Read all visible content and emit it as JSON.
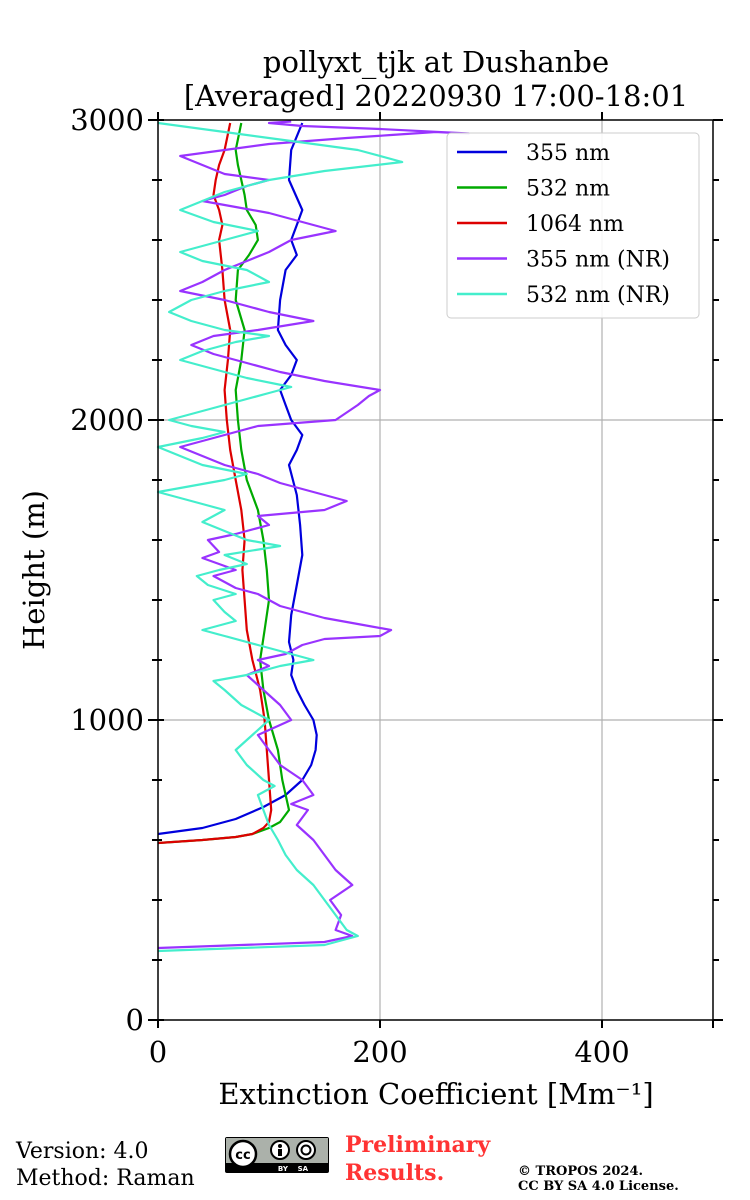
{
  "chart_data": {
    "type": "line",
    "title": [
      "pollyxt_tjk at Dushanbe",
      "[Averaged] 20220930 17:00-18:01"
    ],
    "xlabel": "Extinction Coefficient [Mm⁻¹]",
    "ylabel": "Height (m)",
    "xlim": [
      0,
      500
    ],
    "ylim": [
      0,
      3000
    ],
    "xticks": [
      0,
      200,
      400
    ],
    "yticks": [
      0,
      1000,
      2000,
      3000
    ],
    "grid": true,
    "legend_position": "top-right",
    "series": [
      {
        "name": "355 nm",
        "color": "#0000dd",
        "x": [
          0,
          40,
          70,
          95,
          115,
          130,
          138,
          142,
          143,
          140,
          132,
          125,
          120,
          122,
          118,
          120,
          125,
          130,
          128,
          125,
          118,
          125,
          130,
          120,
          115,
          110,
          120,
          125,
          115,
          108,
          110,
          115,
          125,
          120,
          125,
          130,
          118,
          120,
          130
        ],
        "y": [
          620,
          640,
          670,
          710,
          750,
          800,
          850,
          900,
          950,
          1000,
          1050,
          1100,
          1150,
          1200,
          1260,
          1350,
          1450,
          1550,
          1650,
          1750,
          1850,
          1900,
          1950,
          2000,
          2050,
          2100,
          2150,
          2200,
          2250,
          2300,
          2400,
          2500,
          2550,
          2600,
          2650,
          2700,
          2800,
          2900,
          2990
        ]
      },
      {
        "name": "532 nm",
        "color": "#00aa00",
        "x": [
          0,
          40,
          70,
          85,
          100,
          110,
          118,
          112,
          108,
          100,
          95,
          92,
          96,
          100,
          98,
          95,
          90,
          80,
          75,
          72,
          70,
          75,
          78,
          70,
          72,
          82,
          90,
          88,
          80,
          78,
          75,
          72,
          70,
          75
        ],
        "y": [
          590,
          600,
          610,
          620,
          640,
          660,
          700,
          800,
          900,
          1000,
          1100,
          1200,
          1300,
          1400,
          1500,
          1600,
          1700,
          1800,
          1900,
          2000,
          2100,
          2200,
          2300,
          2400,
          2500,
          2550,
          2600,
          2650,
          2700,
          2750,
          2800,
          2850,
          2900,
          2990
        ]
      },
      {
        "name": "1064 nm",
        "color": "#dd0000",
        "x": [
          0,
          40,
          70,
          85,
          95,
          100,
          102,
          100,
          98,
          96,
          92,
          85,
          80,
          78,
          76,
          78,
          75,
          70,
          65,
          62,
          60,
          63,
          65,
          60,
          58,
          55,
          58,
          55,
          50,
          52,
          55,
          60,
          65
        ],
        "y": [
          590,
          600,
          610,
          620,
          640,
          660,
          700,
          800,
          900,
          1000,
          1100,
          1200,
          1300,
          1400,
          1500,
          1600,
          1700,
          1800,
          1900,
          2000,
          2100,
          2200,
          2300,
          2400,
          2500,
          2600,
          2650,
          2700,
          2750,
          2800,
          2850,
          2900,
          2990
        ]
      },
      {
        "name": "355 nm (NR)",
        "color": "#9933ff",
        "x": [
          0,
          150,
          175,
          160,
          165,
          155,
          175,
          160,
          150,
          140,
          125,
          135,
          120,
          140,
          130,
          110,
          100,
          90,
          120,
          110,
          95,
          80,
          100,
          90,
          115,
          130,
          150,
          200,
          210,
          180,
          150,
          130,
          110,
          100,
          90,
          70,
          60,
          50,
          70,
          55,
          40,
          55,
          45,
          70,
          100,
          90,
          150,
          170,
          140,
          110,
          90,
          60,
          40,
          20,
          60,
          90,
          160,
          180,
          190,
          200,
          150,
          110,
          80,
          50,
          30,
          50,
          90,
          140,
          100,
          60,
          20,
          40,
          60,
          80,
          100,
          120,
          160,
          130,
          100,
          70,
          40,
          60,
          80,
          100,
          60,
          40,
          20,
          60,
          100,
          170,
          210,
          250,
          280,
          200,
          130,
          100,
          120
        ],
        "y": [
          240,
          260,
          280,
          300,
          350,
          400,
          450,
          500,
          550,
          600,
          650,
          700,
          720,
          750,
          800,
          850,
          900,
          950,
          1000,
          1050,
          1100,
          1150,
          1180,
          1200,
          1220,
          1250,
          1270,
          1280,
          1300,
          1320,
          1340,
          1360,
          1380,
          1400,
          1420,
          1440,
          1460,
          1480,
          1500,
          1520,
          1540,
          1560,
          1600,
          1620,
          1650,
          1680,
          1700,
          1730,
          1760,
          1790,
          1820,
          1850,
          1880,
          1910,
          1950,
          1980,
          2000,
          2050,
          2080,
          2100,
          2130,
          2160,
          2190,
          2220,
          2250,
          2280,
          2300,
          2330,
          2360,
          2400,
          2430,
          2460,
          2500,
          2530,
          2560,
          2600,
          2630,
          2660,
          2690,
          2710,
          2730,
          2750,
          2780,
          2800,
          2820,
          2850,
          2880,
          2900,
          2920,
          2940,
          2950,
          2960,
          2955,
          2970,
          2980,
          2990,
          2995
        ]
      },
      {
        "name": "532 nm (NR)",
        "color": "#44eecc",
        "x": [
          0,
          150,
          180,
          170,
          160,
          150,
          140,
          125,
          115,
          108,
          100,
          95,
          90,
          105,
          95,
          80,
          70,
          85,
          100,
          75,
          60,
          50,
          80,
          110,
          140,
          120,
          90,
          60,
          40,
          70,
          60,
          50,
          70,
          45,
          35,
          55,
          80,
          60,
          110,
          80,
          60,
          40,
          60,
          40,
          20,
          0,
          30,
          60,
          80,
          40,
          20,
          0,
          40,
          60,
          30,
          10,
          40,
          70,
          100,
          120,
          80,
          50,
          20,
          40,
          70,
          100,
          60,
          30,
          10,
          30,
          60,
          100,
          80,
          40,
          20,
          60,
          90,
          50,
          20,
          40,
          60,
          100,
          150,
          220,
          180,
          120,
          60,
          20,
          0
        ],
        "y": [
          230,
          250,
          280,
          300,
          350,
          400,
          450,
          500,
          550,
          600,
          650,
          700,
          750,
          780,
          800,
          850,
          900,
          950,
          1000,
          1050,
          1100,
          1130,
          1150,
          1180,
          1200,
          1220,
          1250,
          1280,
          1300,
          1330,
          1360,
          1400,
          1420,
          1450,
          1480,
          1500,
          1520,
          1550,
          1580,
          1600,
          1630,
          1660,
          1700,
          1720,
          1740,
          1760,
          1780,
          1800,
          1820,
          1850,
          1880,
          1910,
          1940,
          1960,
          1980,
          2000,
          2030,
          2060,
          2090,
          2110,
          2140,
          2170,
          2200,
          2230,
          2260,
          2280,
          2300,
          2330,
          2360,
          2400,
          2430,
          2460,
          2500,
          2530,
          2560,
          2600,
          2630,
          2660,
          2700,
          2730,
          2760,
          2800,
          2830,
          2860,
          2900,
          2930,
          2960,
          2980,
          2990
        ]
      }
    ]
  },
  "footer": {
    "version": "Version: 4.0",
    "method": "Method: Raman",
    "preliminary_line1": "Preliminary",
    "preliminary_line2": "Results.",
    "copyright_line1": "© TROPOS 2024.",
    "copyright_line2": "CC BY SA 4.0 License.",
    "cc_badge_text": "BY    SA"
  }
}
